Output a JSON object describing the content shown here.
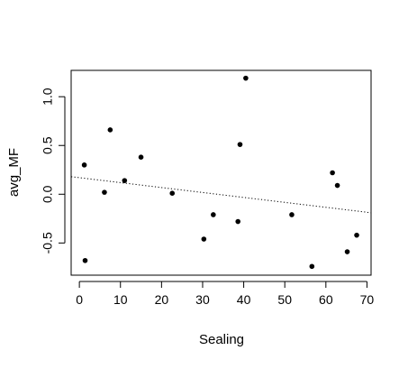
{
  "chart_data": {
    "type": "scatter",
    "xlabel": "Sealing",
    "ylabel": "avg_MF",
    "xlim": [
      -2,
      71
    ],
    "ylim": [
      -0.83,
      1.27
    ],
    "x_ticks": [
      0,
      10,
      20,
      30,
      40,
      50,
      60,
      70
    ],
    "x_tick_labels": [
      "0",
      "10",
      "20",
      "30",
      "40",
      "50",
      "60",
      "70"
    ],
    "y_ticks": [
      -0.5,
      0.0,
      0.5,
      1.0
    ],
    "y_tick_labels": [
      "-0.5",
      "0.0",
      "0.5",
      "1.0"
    ],
    "grid": false,
    "legend": "none",
    "points": [
      {
        "x": 1.2,
        "y": 0.3
      },
      {
        "x": 1.4,
        "y": -0.68
      },
      {
        "x": 6.1,
        "y": 0.02
      },
      {
        "x": 7.5,
        "y": 0.66
      },
      {
        "x": 11.0,
        "y": 0.14
      },
      {
        "x": 15.0,
        "y": 0.38
      },
      {
        "x": 22.6,
        "y": 0.01
      },
      {
        "x": 30.3,
        "y": -0.46
      },
      {
        "x": 32.6,
        "y": -0.21
      },
      {
        "x": 38.6,
        "y": -0.28
      },
      {
        "x": 39.1,
        "y": 0.51
      },
      {
        "x": 40.5,
        "y": 1.19
      },
      {
        "x": 51.7,
        "y": -0.21
      },
      {
        "x": 56.6,
        "y": -0.74
      },
      {
        "x": 61.6,
        "y": 0.22
      },
      {
        "x": 62.8,
        "y": 0.09
      },
      {
        "x": 65.2,
        "y": -0.59
      },
      {
        "x": 67.5,
        "y": -0.42
      }
    ],
    "trend_line": {
      "style": "dotted",
      "x": [
        -2,
        71
      ],
      "y": [
        0.18,
        -0.19
      ]
    },
    "colors": {
      "points": "#000000",
      "axes": "#000000",
      "trend": "#000000",
      "background": "#ffffff"
    }
  }
}
